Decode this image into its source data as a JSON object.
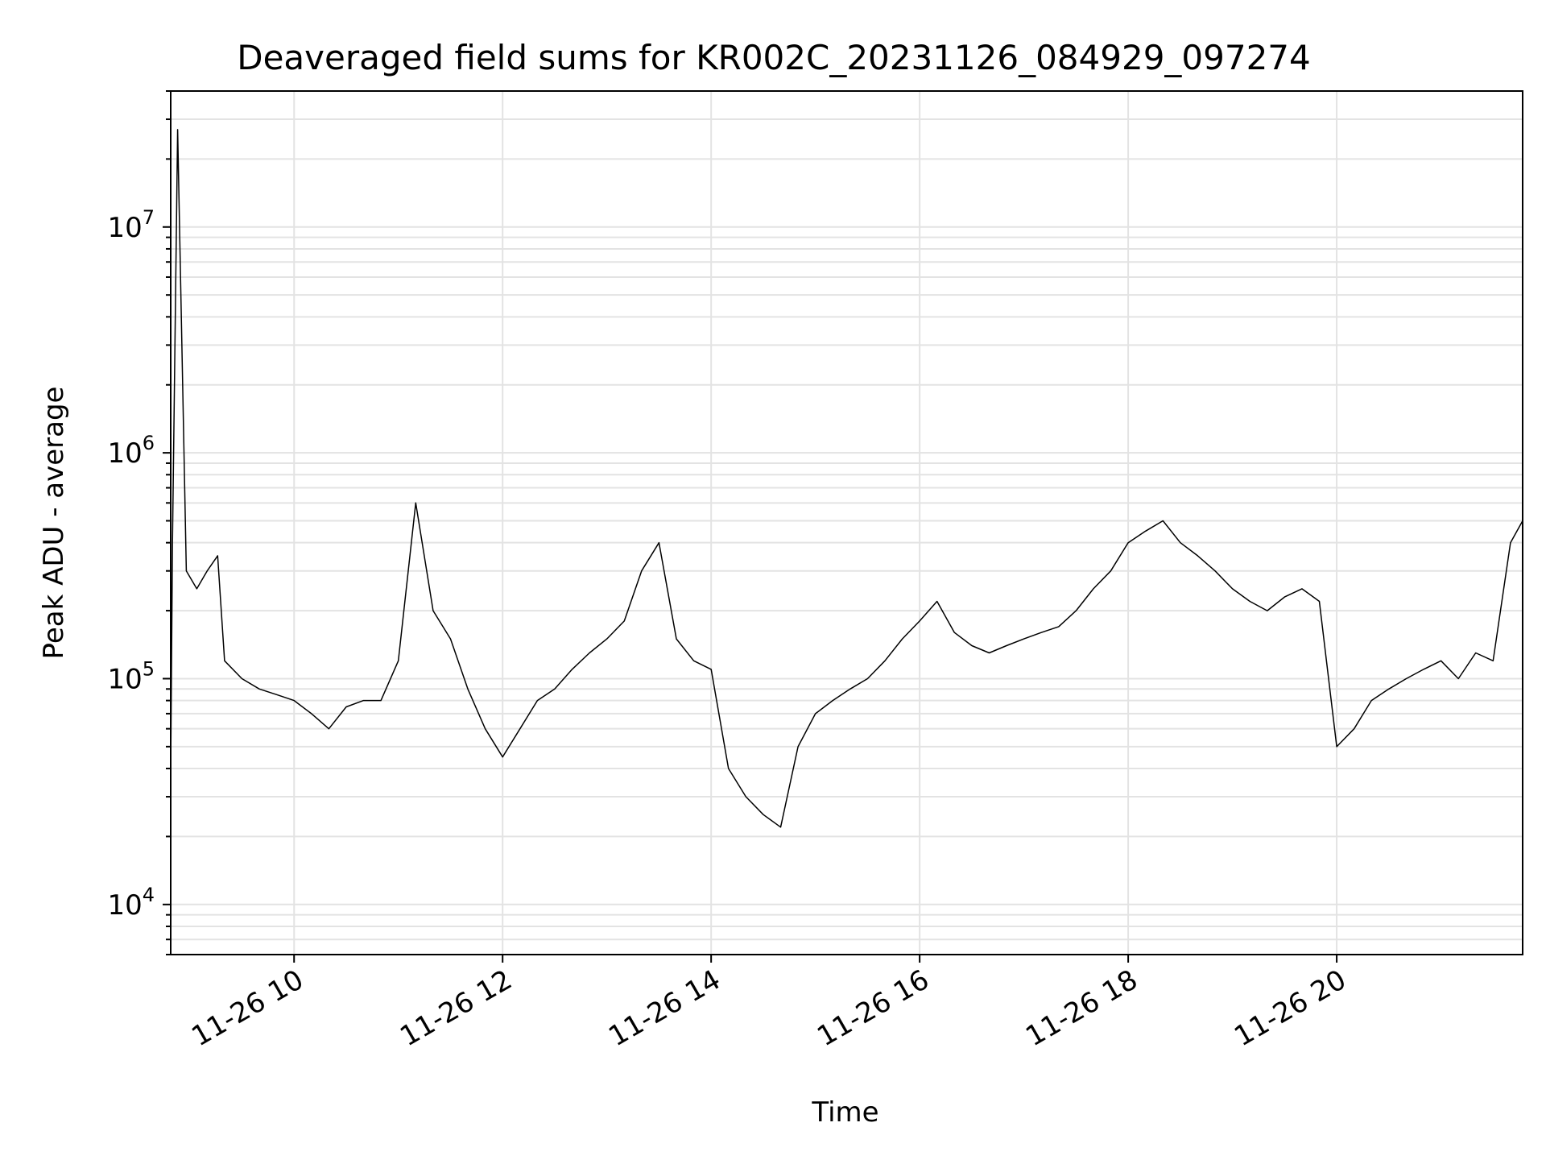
{
  "chart_data": {
    "type": "line",
    "title": "Deaveraged field sums for KR002C_20231126_084929_097274",
    "xlabel": "Time",
    "ylabel": "Peak ADU - average",
    "yscale": "log",
    "grid": true,
    "legend": "none",
    "x_range": [
      "2023-11-26 08:49",
      "2023-11-26 21:47"
    ],
    "ylim": [
      6000,
      40000000
    ],
    "x_ticks": [
      "11-26 10",
      "11-26 12",
      "11-26 14",
      "11-26 16",
      "11-26 18",
      "11-26 20"
    ],
    "y_ticks": [
      {
        "base": "10",
        "exp": "4"
      },
      {
        "base": "10",
        "exp": "5"
      },
      {
        "base": "10",
        "exp": "6"
      },
      {
        "base": "10",
        "exp": "7"
      }
    ],
    "line_color": "#000000",
    "series": [
      {
        "x": [
          "08:49",
          "08:50",
          "08:53",
          "08:58",
          "09:04",
          "09:10",
          "09:16",
          "09:20",
          "09:30",
          "09:40",
          "09:50",
          "10:00",
          "10:10",
          "10:20",
          "10:30",
          "10:40",
          "10:50",
          "11:00",
          "11:10",
          "11:20",
          "11:30",
          "11:40",
          "11:50",
          "12:00",
          "12:10",
          "12:20",
          "12:30",
          "12:40",
          "12:50",
          "13:00",
          "13:10",
          "13:20",
          "13:30",
          "13:40",
          "13:50",
          "14:00",
          "14:10",
          "14:20",
          "14:30",
          "14:40",
          "14:50",
          "15:00",
          "15:10",
          "15:20",
          "15:30",
          "15:40",
          "15:50",
          "16:00",
          "16:10",
          "16:20",
          "16:30",
          "16:40",
          "16:50",
          "17:00",
          "17:10",
          "17:20",
          "17:30",
          "17:40",
          "17:50",
          "18:00",
          "18:10",
          "18:20",
          "18:30",
          "18:40",
          "18:50",
          "19:00",
          "19:10",
          "19:20",
          "19:30",
          "19:40",
          "19:50",
          "20:00",
          "20:10",
          "20:20",
          "20:30",
          "20:40",
          "20:50",
          "21:00",
          "21:10",
          "21:20",
          "21:30",
          "21:40",
          "21:47"
        ],
        "y": [
          40000,
          400000,
          27000000,
          300000,
          250000,
          300000,
          350000,
          120000,
          100000,
          90000,
          85000,
          80000,
          70000,
          60000,
          75000,
          80000,
          80000,
          120000,
          600000,
          200000,
          150000,
          90000,
          60000,
          45000,
          60000,
          80000,
          90000,
          110000,
          130000,
          150000,
          180000,
          300000,
          400000,
          150000,
          120000,
          110000,
          40000,
          30000,
          25000,
          22000,
          50000,
          70000,
          80000,
          90000,
          100000,
          120000,
          150000,
          180000,
          220000,
          160000,
          140000,
          130000,
          140000,
          150000,
          160000,
          170000,
          200000,
          250000,
          300000,
          400000,
          450000,
          500000,
          400000,
          350000,
          300000,
          250000,
          220000,
          200000,
          230000,
          250000,
          220000,
          50000,
          60000,
          80000,
          90000,
          100000,
          110000,
          120000,
          100000,
          130000,
          120000,
          400000,
          500000
        ]
      }
    ]
  }
}
